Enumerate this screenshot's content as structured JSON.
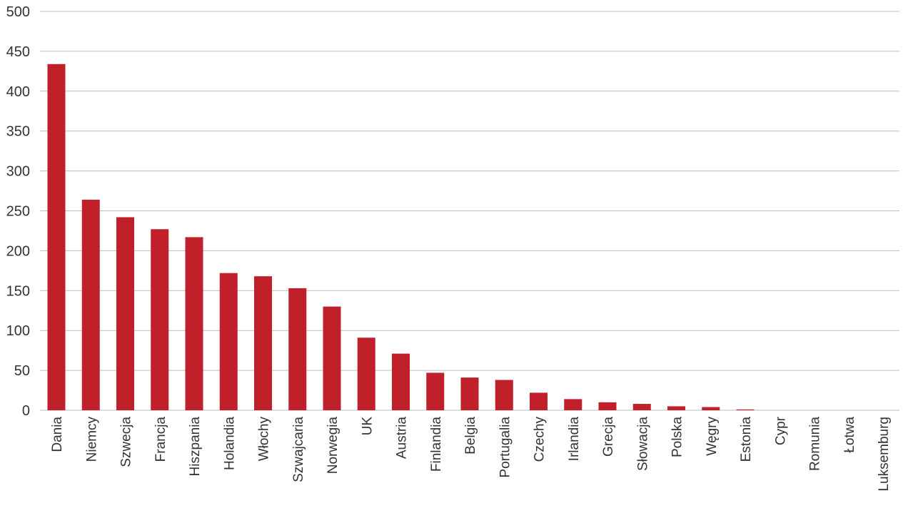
{
  "chart_data": {
    "type": "bar",
    "title": "",
    "xlabel": "",
    "ylabel": "",
    "ylim": [
      0,
      500
    ],
    "yticks": [
      0,
      50,
      100,
      150,
      200,
      250,
      300,
      350,
      400,
      450,
      500
    ],
    "grid": true,
    "bar_color": "#c0202a",
    "categories": [
      "Dania",
      "Niemcy",
      "Szwecja",
      "Francja",
      "Hiszpania",
      "Holandia",
      "Włochy",
      "Szwajcaria",
      "Norwegia",
      "UK",
      "Austria",
      "Finlandia",
      "Belgia",
      "Portugalia",
      "Czechy",
      "Irlandia",
      "Grecja",
      "Słowacja",
      "Polska",
      "Węgry",
      "Estonia",
      "Cypr",
      "Romunia",
      "Łotwa",
      "Luksemburg"
    ],
    "values": [
      434,
      264,
      242,
      227,
      217,
      172,
      168,
      153,
      130,
      91,
      71,
      47,
      41,
      38,
      22,
      14,
      10,
      8,
      5,
      4,
      1,
      0,
      0,
      0,
      0
    ]
  }
}
